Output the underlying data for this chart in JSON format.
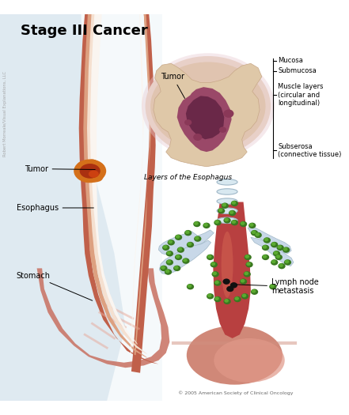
{
  "title": "Stage III Cancer",
  "bg_color": "#ffffff",
  "labels": {
    "tumor_left": "Tumor",
    "esophagus": "Esophagus",
    "stomach": "Stomach",
    "tumor_cross": "Tumor",
    "layers_title": "Layers of the Esophagus",
    "mucosa": "Mucosa",
    "submucosa": "Submucosa",
    "muscle_layers": "Muscle layers\n(circular and\nlongitudinal)",
    "subserosa": "Subserosa\n(connective tissue)",
    "lymph_node": "Lymph node\nmetastasis",
    "copyright": "© 2005 American Society of Clinical Oncology",
    "credit": "Robert Morreale/Visual Explanations, LLC"
  },
  "colors": {
    "eso_outer": "#c0604a",
    "eso_mid": "#dda080",
    "eso_inner": "#e8c0a0",
    "eso_lining": "#f5e0d0",
    "eso_white": "#faf5f0",
    "stomach_outer": "#c87060",
    "stomach_inner": "#e8a898",
    "stomach_fold": "#d4907a",
    "tumor_orange": "#d4701a",
    "tumor_red": "#aa3010",
    "blue_bg": "#c8dde8",
    "cs_pink_outer": "#e8c8c0",
    "cs_tissue": "#e8c8a0",
    "cs_tissue2": "#d4b090",
    "cs_dark1": "#8a4060",
    "cs_dark2": "#6a2848",
    "cs_stripe": "#c8a8b0",
    "right_eso": "#b84040",
    "right_eso2": "#d06050",
    "bronchi": "#c8d8e8",
    "bronchi_edge": "#a0b8c8",
    "lymph_green": "#3a7820",
    "lymph_bright": "#5aaa30",
    "black_node": "#111111",
    "stomach_r": "#d08878"
  }
}
